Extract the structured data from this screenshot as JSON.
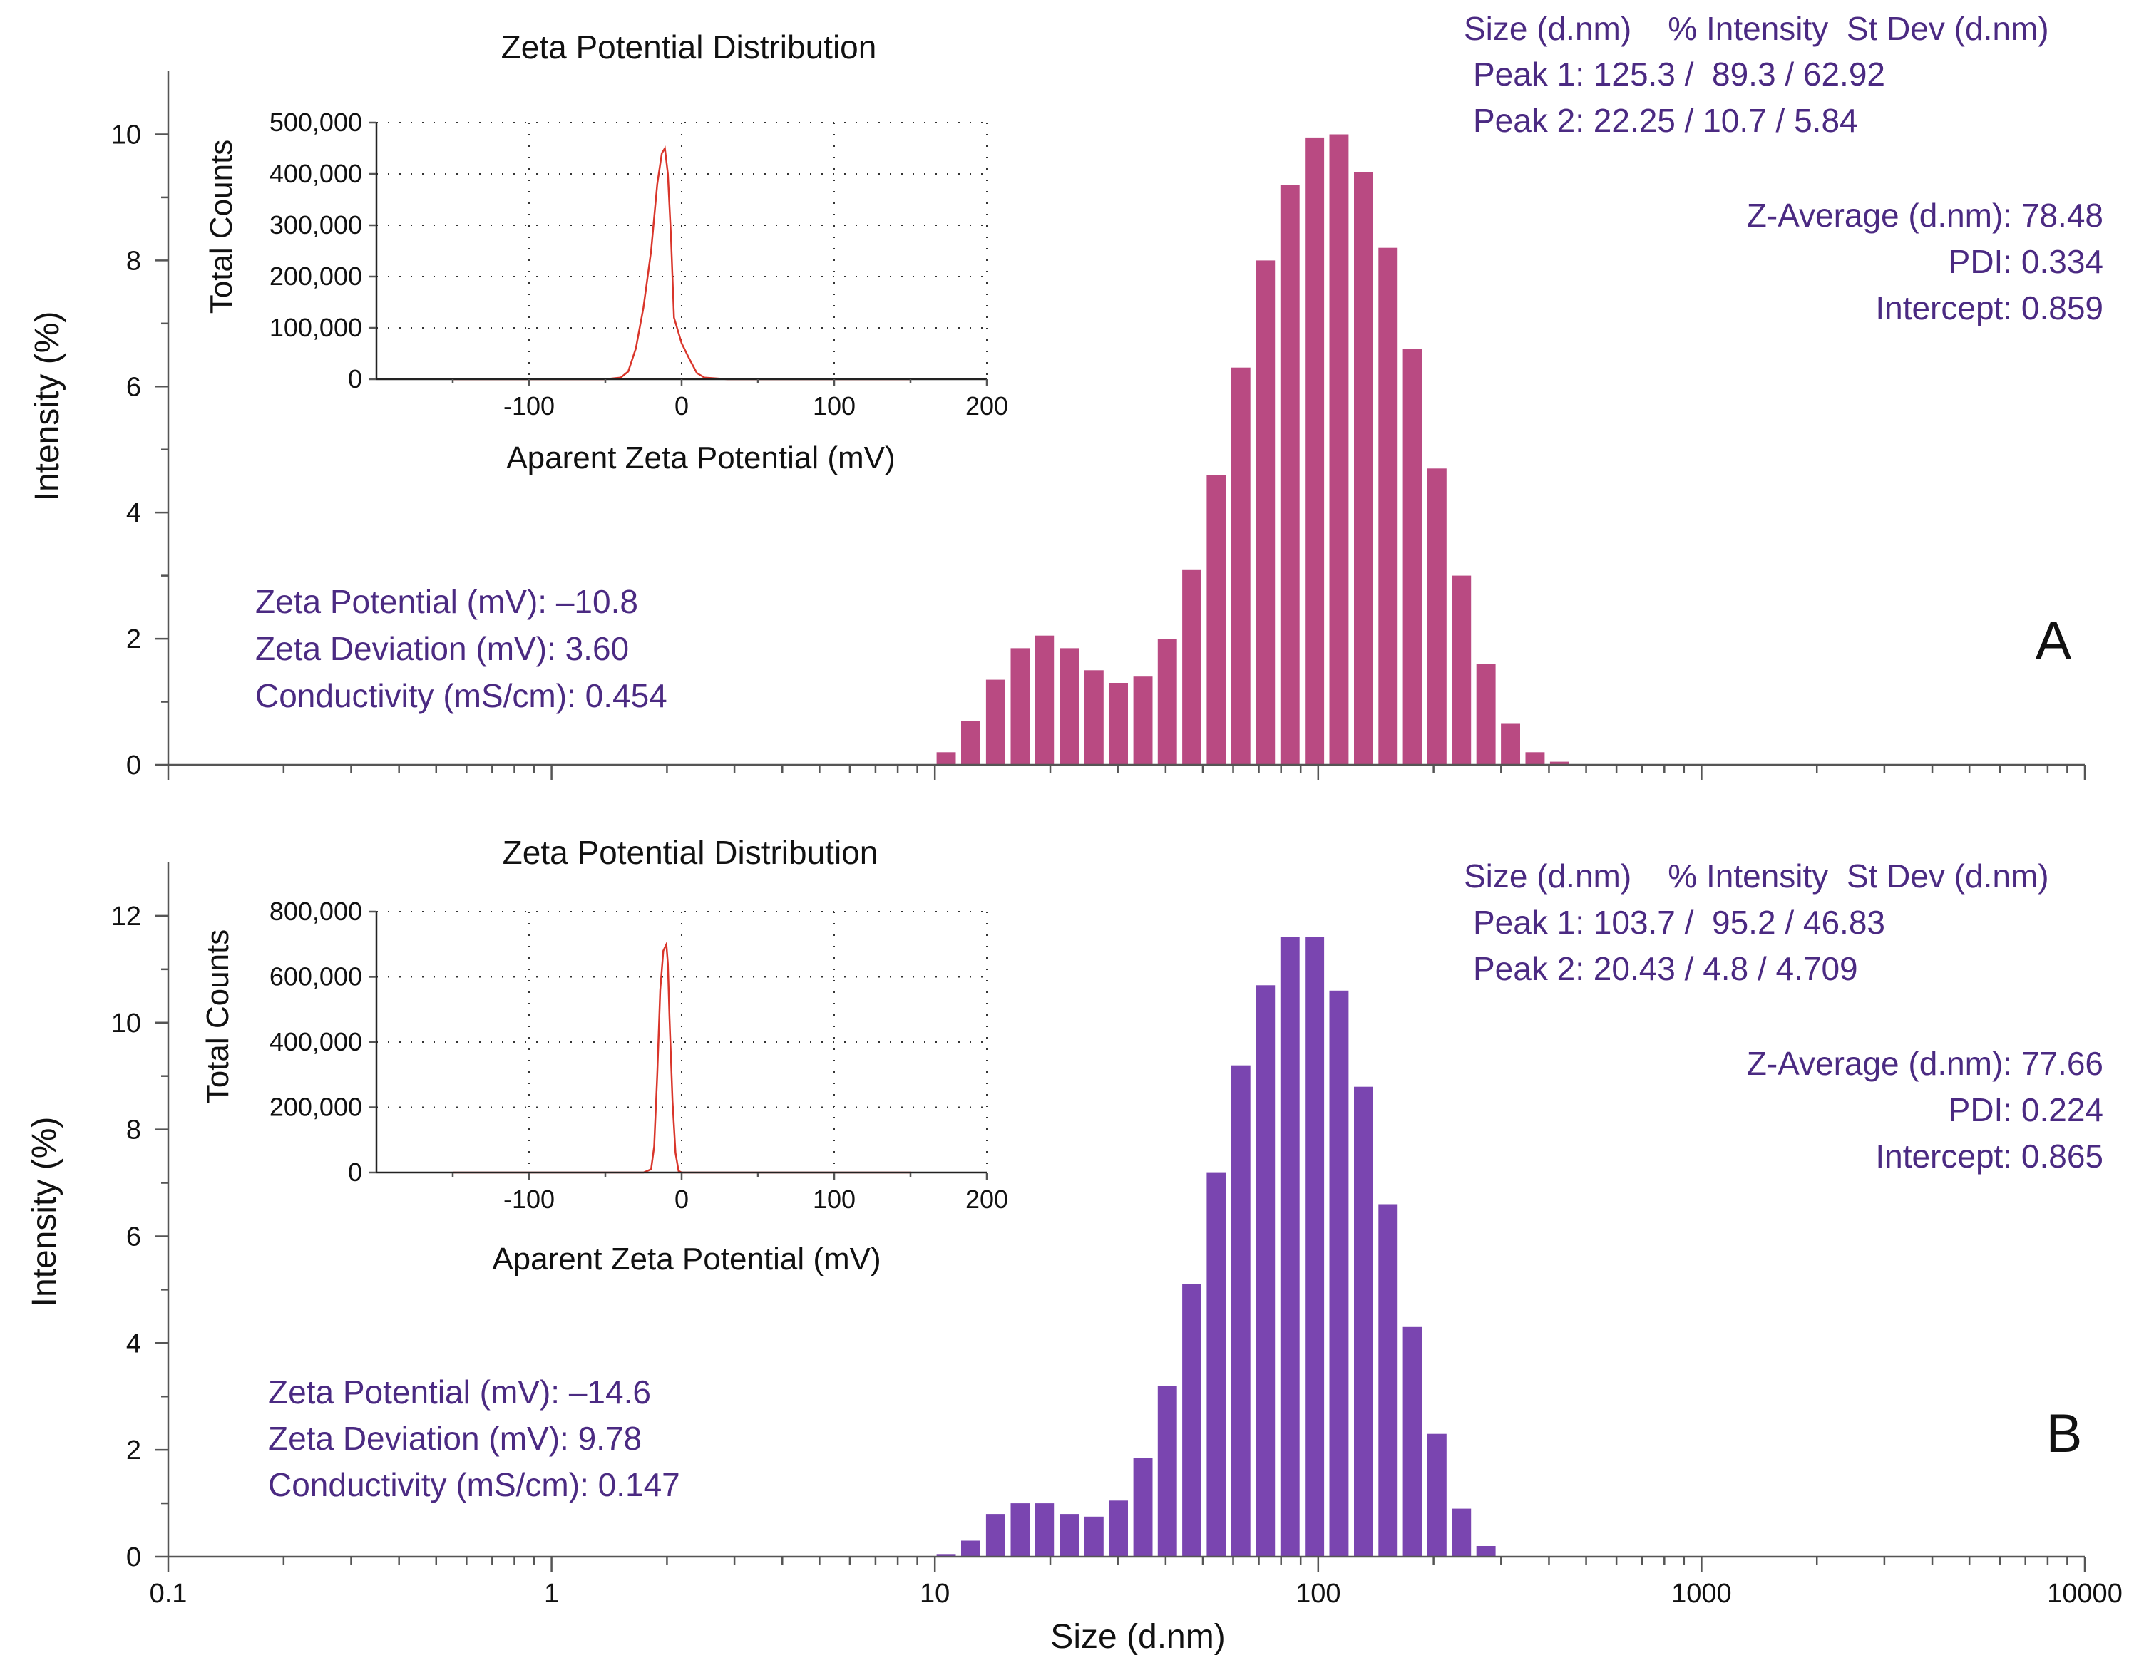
{
  "figure": {
    "xlabel": "Size (d.nm)",
    "x_tick_labels": [
      "0.1",
      "1",
      "10",
      "100",
      "1000",
      "10000"
    ]
  },
  "colors": {
    "panel_a_bars": "#b94a82",
    "panel_b_bars": "#7a45b0",
    "inset_line": "#d9352a",
    "annotation_text": "#4b2a82"
  },
  "panels": [
    {
      "label": "A",
      "ylabel": "Intensity (%)",
      "y_tick_labels": [
        "0",
        "2",
        "4",
        "6",
        "8",
        "10"
      ],
      "stats": {
        "header": "Size (d.nm)    % Intensity  St Dev (d.nm)",
        "peak1": "Peak 1: 125.3 /  89.3 / 62.92",
        "peak2": "Peak 2: 22.25 / 10.7 / 5.84",
        "z_average": "Z-Average (d.nm): 78.48",
        "pdi": "PDI: 0.334",
        "intercept": "Intercept: 0.859"
      },
      "zeta": {
        "potential": "Zeta Potential (mV): –10.8",
        "deviation": "Zeta Deviation (mV): 3.60",
        "conductivity": "Conductivity (mS/cm): 0.454"
      },
      "inset": {
        "title": "Zeta Potential Distribution",
        "xlabel": "Aparent Zeta Potential (mV)",
        "ylabel": "Total Counts",
        "x_tick_labels": [
          "-100",
          "0",
          "100",
          "200"
        ],
        "y_tick_labels": [
          "0",
          "100,000",
          "200,000",
          "300,000",
          "400,000",
          "500,000"
        ]
      }
    },
    {
      "label": "B",
      "ylabel": "Intensity (%)",
      "y_tick_labels": [
        "0",
        "2",
        "4",
        "6",
        "8",
        "10",
        "12"
      ],
      "stats": {
        "header": "Size (d.nm)    % Intensity  St Dev (d.nm)",
        "peak1": "Peak 1: 103.7 /  95.2 / 46.83",
        "peak2": "Peak 2: 20.43 / 4.8 / 4.709",
        "z_average": "Z-Average (d.nm): 77.66",
        "pdi": "PDI: 0.224",
        "intercept": "Intercept: 0.865"
      },
      "zeta": {
        "potential": "Zeta Potential (mV): –14.6",
        "deviation": "Zeta Deviation (mV): 9.78",
        "conductivity": "Conductivity (mS/cm): 0.147"
      },
      "inset": {
        "title": "Zeta Potential Distribution",
        "xlabel": "Aparent Zeta Potential (mV)",
        "ylabel": "Total Counts",
        "x_tick_labels": [
          "-100",
          "0",
          "100",
          "200"
        ],
        "y_tick_labels": [
          "0",
          "200,000",
          "400,000",
          "600,000",
          "800,000"
        ]
      }
    }
  ],
  "chart_data": [
    {
      "type": "bar",
      "panel": "A",
      "x_scale": "log",
      "xlim": [
        0.1,
        10000
      ],
      "ylim": [
        0,
        11
      ],
      "xlabel": "Size (d.nm)",
      "ylabel": "Intensity (%)",
      "sizes": [
        10.7,
        12.4,
        14.4,
        16.7,
        19.3,
        22.4,
        26.0,
        30.1,
        34.9,
        40.4,
        46.8,
        54.2,
        62.8,
        72.8,
        84.4,
        97.8,
        113.3,
        131.3,
        152.1,
        176.2,
        204.1,
        236.5,
        274.0,
        317.5,
        367.9,
        426.3,
        493.9
      ],
      "values": [
        0.2,
        0.7,
        1.35,
        1.85,
        2.05,
        1.85,
        1.5,
        1.3,
        1.4,
        2.0,
        3.1,
        4.6,
        6.3,
        8.0,
        9.2,
        9.95,
        10.0,
        9.4,
        8.2,
        6.6,
        4.7,
        3.0,
        1.6,
        0.65,
        0.2,
        0.05,
        0.0
      ],
      "grid": false
    },
    {
      "type": "bar",
      "panel": "B",
      "x_scale": "log",
      "xlim": [
        0.1,
        10000
      ],
      "ylim": [
        0,
        13
      ],
      "xlabel": "Size (d.nm)",
      "ylabel": "Intensity (%)",
      "sizes": [
        10.7,
        12.4,
        14.4,
        16.7,
        19.3,
        22.4,
        26.0,
        30.1,
        34.9,
        40.4,
        46.8,
        54.2,
        62.8,
        72.8,
        84.4,
        97.8,
        113.3,
        131.3,
        152.1,
        176.2,
        204.1,
        236.5,
        274.0,
        317.5
      ],
      "values": [
        0.05,
        0.3,
        0.8,
        1.0,
        1.0,
        0.8,
        0.75,
        1.05,
        1.85,
        3.2,
        5.1,
        7.2,
        9.2,
        10.7,
        11.6,
        11.6,
        10.6,
        8.8,
        6.6,
        4.3,
        2.3,
        0.9,
        0.2,
        0.0
      ],
      "grid": false
    },
    {
      "type": "line",
      "panel": "A-inset",
      "title": "Zeta Potential Distribution",
      "xlabel": "Aparent Zeta Potential (mV)",
      "ylabel": "Total Counts",
      "xlim": [
        -200,
        200
      ],
      "ylim": [
        0,
        500000
      ],
      "grid": true,
      "x": [
        -150,
        -50,
        -40,
        -35,
        -30,
        -25,
        -20,
        -16,
        -13,
        -11,
        -9,
        -7,
        -5,
        0,
        5,
        10,
        15,
        30,
        150
      ],
      "y": [
        0,
        0,
        3000,
        15000,
        60000,
        140000,
        250000,
        380000,
        440000,
        450000,
        400000,
        280000,
        120000,
        70000,
        40000,
        12000,
        3000,
        0,
        0
      ]
    },
    {
      "type": "line",
      "panel": "B-inset",
      "title": "Zeta Potential Distribution",
      "xlabel": "Aparent Zeta Potential (mV)",
      "ylabel": "Total Counts",
      "xlim": [
        -200,
        200
      ],
      "ylim": [
        0,
        800000
      ],
      "grid": true,
      "x": [
        -150,
        -25,
        -20,
        -18,
        -16,
        -14,
        -12,
        -10,
        -9,
        -8,
        -6,
        -4,
        -2,
        0,
        150
      ],
      "y": [
        0,
        0,
        10000,
        80000,
        300000,
        560000,
        680000,
        700000,
        640000,
        480000,
        220000,
        60000,
        5000,
        0,
        0
      ]
    }
  ]
}
